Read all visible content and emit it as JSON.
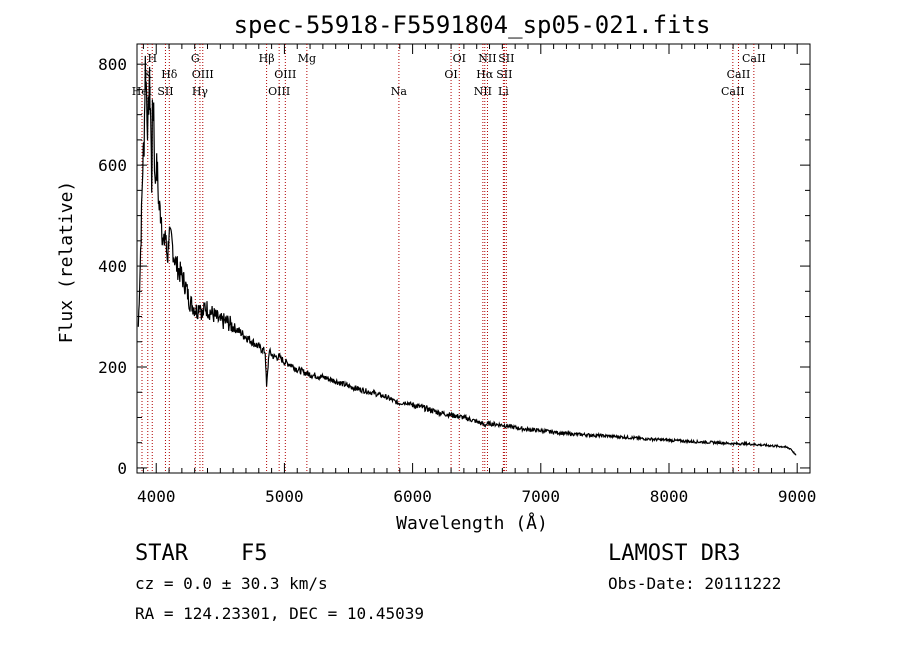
{
  "chart_data": {
    "type": "line",
    "title": "spec-55918-F5591804_sp05-021.fits",
    "xlabel": "Wavelength (Å)",
    "ylabel": "Flux (relative)",
    "xlim": [
      3850,
      9100
    ],
    "ylim": [
      -10,
      840
    ],
    "xticks": [
      4000,
      5000,
      6000,
      7000,
      8000,
      9000
    ],
    "xtick_labels": [
      "4000",
      "5000",
      "6000",
      "7000",
      "8000",
      "9000"
    ],
    "yticks": [
      0,
      200,
      400,
      600,
      800
    ],
    "ytick_labels": [
      "0",
      "200",
      "400",
      "600",
      "800"
    ],
    "series": [
      {
        "name": "spectrum",
        "x": [
          3860,
          3875,
          3885,
          3895,
          3905,
          3915,
          3925,
          3935,
          3945,
          3955,
          3965,
          3970,
          3980,
          3990,
          4000,
          4010,
          4020,
          4030,
          4040,
          4050,
          4060,
          4070,
          4080,
          4090,
          4100,
          4110,
          4120,
          4140,
          4160,
          4180,
          4200,
          4230,
          4260,
          4290,
          4320,
          4340,
          4360,
          4380,
          4420,
          4460,
          4500,
          4550,
          4600,
          4650,
          4700,
          4750,
          4800,
          4850,
          4861,
          4880,
          4920,
          4960,
          5000,
          5050,
          5100,
          5150,
          5200,
          5300,
          5400,
          5500,
          5600,
          5700,
          5800,
          5890,
          5950,
          6000,
          6100,
          6200,
          6300,
          6400,
          6500,
          6563,
          6600,
          6700,
          6800,
          6900,
          7000,
          7200,
          7400,
          7600,
          7800,
          8000,
          8200,
          8400,
          8500,
          8600,
          8700,
          8800,
          8900,
          8950,
          8990
        ],
        "y": [
          280,
          400,
          500,
          600,
          650,
          800,
          740,
          660,
          770,
          720,
          560,
          690,
          720,
          560,
          600,
          580,
          520,
          510,
          500,
          450,
          440,
          470,
          430,
          420,
          470,
          450,
          450,
          420,
          400,
          390,
          380,
          360,
          330,
          320,
          310,
          330,
          300,
          320,
          310,
          300,
          290,
          290,
          280,
          270,
          260,
          250,
          240,
          230,
          160,
          230,
          220,
          220,
          210,
          205,
          195,
          190,
          185,
          180,
          172,
          162,
          155,
          148,
          140,
          128,
          130,
          125,
          118,
          110,
          105,
          100,
          92,
          85,
          88,
          85,
          80,
          76,
          74,
          68,
          65,
          62,
          58,
          55,
          52,
          50,
          48,
          48,
          46,
          44,
          42,
          38,
          25
        ]
      }
    ],
    "lines": [
      {
        "wave": 3889,
        "label": "HeI",
        "row": 3
      },
      {
        "wave": 3934,
        "label": "K",
        "row": 2
      },
      {
        "wave": 3969,
        "label": "H",
        "row": 1
      },
      {
        "wave": 4072,
        "label": "SII",
        "row": 3
      },
      {
        "wave": 4102,
        "label": "Hδ",
        "row": 2
      },
      {
        "wave": 4305,
        "label": "G",
        "row": 1
      },
      {
        "wave": 4341,
        "label": "Hγ",
        "row": 3
      },
      {
        "wave": 4363,
        "label": "OIII",
        "row": 2
      },
      {
        "wave": 4861,
        "label": "Hβ",
        "row": 1
      },
      {
        "wave": 4959,
        "label": "OIII",
        "row": 3
      },
      {
        "wave": 5007,
        "label": "OIII",
        "row": 2
      },
      {
        "wave": 5175,
        "label": "Mg",
        "row": 1
      },
      {
        "wave": 5893,
        "label": "Na",
        "row": 3
      },
      {
        "wave": 6300,
        "label": "OI",
        "row": 2
      },
      {
        "wave": 6364,
        "label": "OI",
        "row": 1
      },
      {
        "wave": 6548,
        "label": "NII",
        "row": 3
      },
      {
        "wave": 6563,
        "label": "Hα",
        "row": 2
      },
      {
        "wave": 6584,
        "label": "NII",
        "row": 1
      },
      {
        "wave": 6708,
        "label": "Li",
        "row": 3
      },
      {
        "wave": 6716,
        "label": "SII",
        "row": 2
      },
      {
        "wave": 6731,
        "label": "SII",
        "row": 1
      },
      {
        "wave": 8498,
        "label": "CaII",
        "row": 3
      },
      {
        "wave": 8542,
        "label": "CaII",
        "row": 2
      },
      {
        "wave": 8662,
        "label": "CaII",
        "row": 1
      }
    ]
  },
  "info": {
    "class": "STAR",
    "subclass": "F5",
    "redshift": "cz = 0.0 ± 30.3 km/s",
    "coords": "RA = 124.23301, DEC =  10.45039",
    "survey": "LAMOST DR3",
    "obs_date": "Obs-Date: 20111222"
  },
  "colors": {
    "line_marker": "#b00000",
    "spectrum": "#000000"
  }
}
